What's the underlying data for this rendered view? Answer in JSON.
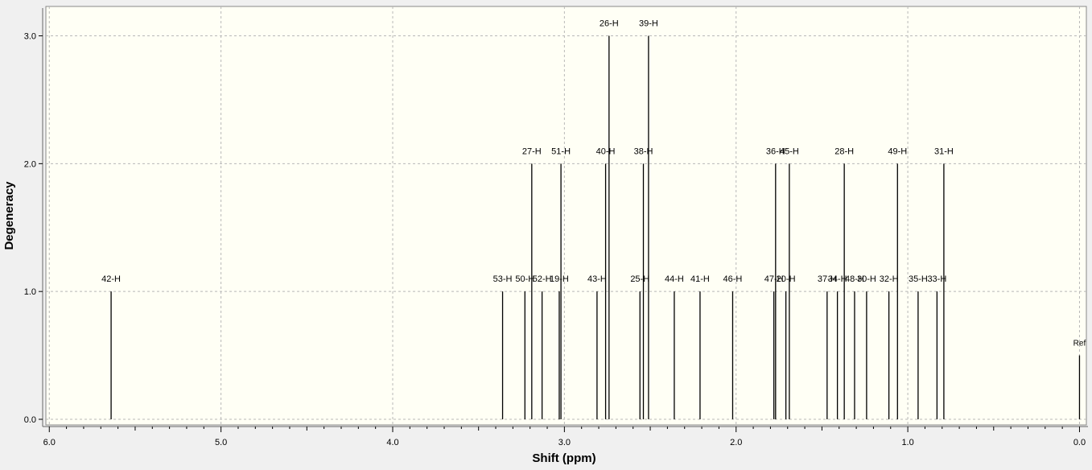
{
  "chart_data": {
    "type": "stick",
    "x_label": "Shift (ppm)",
    "y_label": "Degeneracy",
    "point_labels": [
      "42-H",
      "53-H",
      "50-H",
      "27-H",
      "52-H",
      "19-H",
      "51-H",
      "43-H",
      "40-H",
      "26-H",
      "25-H",
      "38-H",
      "39-H",
      "44-H",
      "41-H",
      "46-H",
      "47-H",
      "36-H",
      "20-H",
      "45-H",
      "37-H",
      "34-H",
      "28-H",
      "48-H",
      "30-H",
      "32-H",
      "49-H",
      "35-H",
      "33-H",
      "31-H",
      "Ref"
    ],
    "x": [
      5.64,
      3.36,
      3.23,
      3.19,
      3.13,
      3.03,
      3.02,
      2.81,
      2.76,
      2.74,
      2.56,
      2.54,
      2.51,
      2.36,
      2.21,
      2.02,
      1.78,
      1.77,
      1.71,
      1.69,
      1.47,
      1.41,
      1.37,
      1.31,
      1.24,
      1.11,
      1.06,
      0.94,
      0.83,
      0.79,
      0.0
    ],
    "values": [
      1,
      1,
      1,
      2,
      1,
      1,
      2,
      1,
      2,
      3,
      1,
      2,
      3,
      1,
      1,
      1,
      1,
      2,
      1,
      2,
      1,
      1,
      2,
      1,
      1,
      1,
      2,
      1,
      1,
      2,
      0.5
    ],
    "color": "#000000",
    "xlim": [
      6.02,
      -0.04
    ],
    "xticks": [
      {
        "value": 6,
        "label": "6.0"
      },
      {
        "value": 5,
        "label": "5.0"
      },
      {
        "value": 4,
        "label": "4.0"
      },
      {
        "value": 3,
        "label": "3.0"
      },
      {
        "value": 2,
        "label": "2.0"
      },
      {
        "value": 1,
        "label": "1.0"
      },
      {
        "value": 0,
        "label": "0.0"
      }
    ],
    "ylim": [
      -0.044,
      3.23
    ],
    "yticks": [
      {
        "value": 0,
        "label": "0.0"
      },
      {
        "value": 1,
        "label": "1.0"
      },
      {
        "value": 2,
        "label": "2.0"
      },
      {
        "value": 3,
        "label": "3.0"
      }
    ],
    "grid": true
  }
}
